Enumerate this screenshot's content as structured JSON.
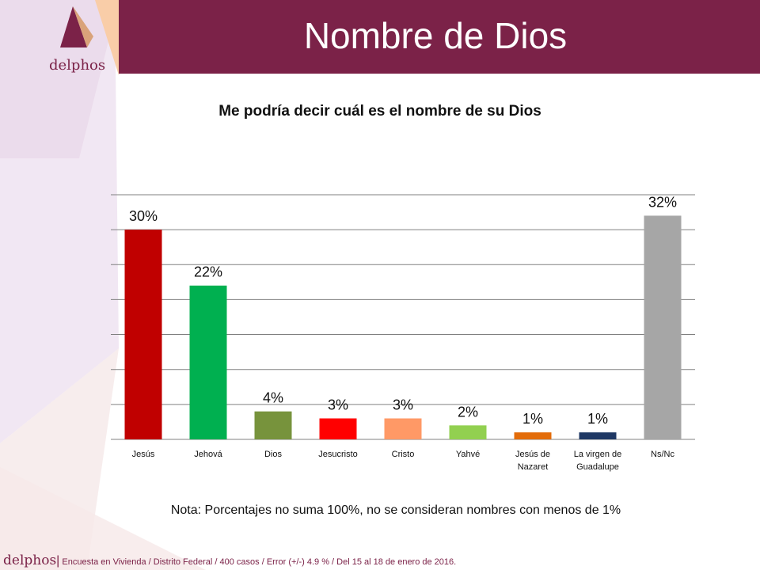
{
  "header": {
    "title": "Nombre de Dios",
    "logo_text": "delphos"
  },
  "chart_data": {
    "type": "bar",
    "title": "Me podría decir cuál es el nombre de su Dios",
    "categories": [
      "Jesús",
      "Jehová",
      "Dios",
      "Jesucristo",
      "Cristo",
      "Yahvé",
      "Jesús de Nazaret",
      "La virgen de Guadalupe",
      "Ns/Nc"
    ],
    "category_lines": [
      [
        "Jesús"
      ],
      [
        "Jehová"
      ],
      [
        "Dios"
      ],
      [
        "Jesucristo"
      ],
      [
        "Cristo"
      ],
      [
        "Yahvé"
      ],
      [
        "Jesús de",
        "Nazaret"
      ],
      [
        "La virgen de",
        "Guadalupe"
      ],
      [
        "Ns/Nc"
      ]
    ],
    "values": [
      30,
      22,
      4,
      3,
      3,
      2,
      1,
      1,
      32
    ],
    "labels": [
      "30%",
      "22%",
      "4%",
      "3%",
      "3%",
      "2%",
      "1%",
      "1%",
      "32%"
    ],
    "colors": [
      "#c00000",
      "#00b050",
      "#77933c",
      "#ff0000",
      "#ff9966",
      "#92d050",
      "#e36c09",
      "#1f3864",
      "#a6a6a6"
    ],
    "ylim": [
      0,
      35
    ],
    "gridlines": true,
    "y_tick_labels_shown": false
  },
  "note": "Nota: Porcentajes no suma 100%, no se consideran nombres con menos de 1%",
  "footer": {
    "brand": "delphos",
    "separator": "|",
    "text": "Encuesta en Vivienda / Distrito Federal / 400 casos / Error (+/-) 4.9 % / Del 15 al 18 de enero de 2016."
  }
}
